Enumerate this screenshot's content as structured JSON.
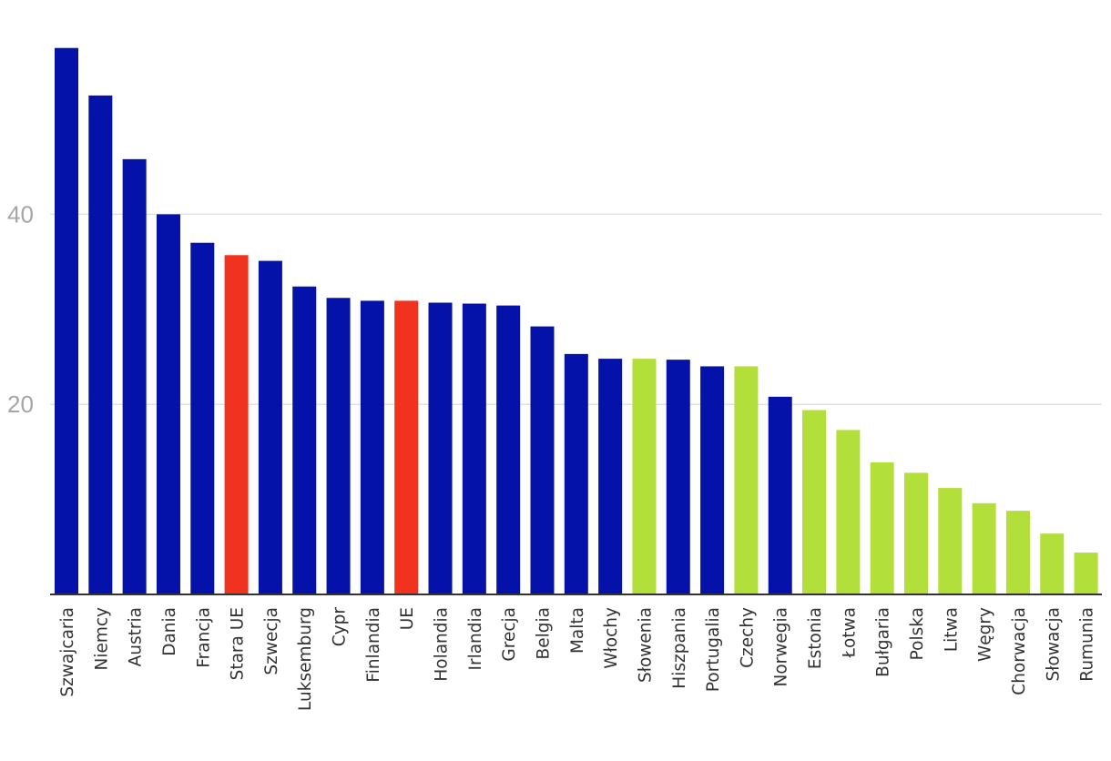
{
  "colors": {
    "default_bar": "#0412aa",
    "highlight_bar": "#f0321e",
    "accent_bar": "#b3df3a",
    "grid": "#e1e1e1",
    "axis": "#333333",
    "ytick_text": "#a6a6a6",
    "xtick_text": "#333333"
  },
  "chart_data": {
    "type": "bar",
    "title": "",
    "xlabel": "",
    "ylabel": "",
    "ylim": [
      0,
      57.5
    ],
    "yticks": [
      20,
      40
    ],
    "grid": true,
    "categories": [
      "Szwajcaria",
      "Niemcy",
      "Austria",
      "Dania",
      "Francja",
      "Stara UE",
      "Szwecja",
      "Luksemburg",
      "Cypr",
      "Finlandia",
      "UE",
      "Holandia",
      "Irlandia",
      "Grecja",
      "Belgia",
      "Malta",
      "Włochy",
      "Słowenia",
      "Hiszpania",
      "Portugalia",
      "Czechy",
      "Norwegia",
      "Estonia",
      "Łotwa",
      "Bułgaria",
      "Polska",
      "Litwa",
      "Węgry",
      "Chorwacja",
      "Słowacja",
      "Rumunia"
    ],
    "values": [
      57.5,
      52.5,
      45.8,
      40.0,
      37.0,
      35.7,
      35.1,
      32.4,
      31.2,
      30.9,
      30.9,
      30.7,
      30.6,
      30.4,
      28.2,
      25.3,
      24.8,
      24.8,
      24.7,
      24.0,
      24.0,
      20.8,
      19.4,
      17.3,
      13.9,
      12.8,
      11.2,
      9.6,
      8.8,
      6.4,
      4.4
    ],
    "bar_colors": [
      "default",
      "default",
      "default",
      "default",
      "default",
      "highlight",
      "default",
      "default",
      "default",
      "default",
      "highlight",
      "default",
      "default",
      "default",
      "default",
      "default",
      "default",
      "accent",
      "default",
      "default",
      "accent",
      "default",
      "accent",
      "accent",
      "accent",
      "accent",
      "accent",
      "accent",
      "accent",
      "accent",
      "accent"
    ]
  }
}
